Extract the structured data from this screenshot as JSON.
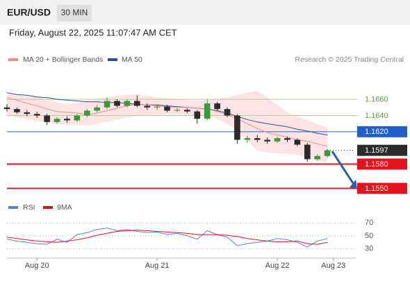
{
  "header": {
    "symbol": "EUR/USD",
    "interval": "30 MIN",
    "datetime": "Friday, August 22, 2025 11:07:47 AM CET"
  },
  "chart_data": [
    {
      "type": "candlestick",
      "source": "Research © 2025 Trading Central",
      "up_color": "#3a9a3a",
      "down_color": "#2b2b2b",
      "xlim": [
        0,
        34.7
      ],
      "ylim": [
        1.1541,
        1.1697
      ],
      "open": [
        1.165,
        1.1648,
        1.1644,
        1.1642,
        1.164,
        1.1632,
        1.1636,
        1.1634,
        1.164,
        1.1646,
        1.165,
        1.1658,
        1.1652,
        1.1658,
        1.1652,
        1.165,
        1.1651,
        1.1646,
        1.1647,
        1.1645,
        1.1636,
        1.1655,
        1.1648,
        1.164,
        1.161,
        1.1612,
        1.161,
        1.1608,
        1.1612,
        1.161,
        1.1604,
        1.1586,
        1.159
      ],
      "high": [
        1.1654,
        1.165,
        1.1647,
        1.1645,
        1.1642,
        1.1638,
        1.1639,
        1.1642,
        1.1648,
        1.1653,
        1.1662,
        1.166,
        1.166,
        1.1665,
        1.1655,
        1.1654,
        1.1653,
        1.1649,
        1.1649,
        1.1647,
        1.166,
        1.1657,
        1.165,
        1.1642,
        1.1615,
        1.1616,
        1.1613,
        1.1614,
        1.1614,
        1.1612,
        1.1606,
        1.1592,
        1.1599
      ],
      "low": [
        1.1645,
        1.1642,
        1.1639,
        1.1637,
        1.1628,
        1.163,
        1.1631,
        1.1632,
        1.1638,
        1.1644,
        1.1648,
        1.165,
        1.165,
        1.165,
        1.1647,
        1.1647,
        1.1644,
        1.1644,
        1.1643,
        1.163,
        1.1634,
        1.1646,
        1.1638,
        1.1605,
        1.1606,
        1.1607,
        1.1605,
        1.1606,
        1.1607,
        1.1602,
        1.1583,
        1.1584,
        1.1588
      ],
      "close": [
        1.1648,
        1.1644,
        1.1642,
        1.164,
        1.1632,
        1.1636,
        1.1634,
        1.164,
        1.1646,
        1.165,
        1.1658,
        1.1652,
        1.1658,
        1.1652,
        1.165,
        1.1651,
        1.1646,
        1.1647,
        1.1645,
        1.1636,
        1.1655,
        1.1648,
        1.164,
        1.161,
        1.1612,
        1.161,
        1.1608,
        1.1612,
        1.161,
        1.1604,
        1.1586,
        1.159,
        1.1597
      ],
      "series": [
        {
          "name": "MA 20 + Bollinger Bands",
          "color": "#f08a8a",
          "band_color": "#fde3e3",
          "values": [
            1.1662,
            1.1659,
            1.1655,
            1.1652,
            1.1648,
            1.1645,
            1.1644,
            1.1643,
            1.1641,
            1.1643,
            1.1646,
            1.1649,
            1.1652,
            1.1654,
            1.1653,
            1.1652,
            1.1651,
            1.165,
            1.165,
            1.1649,
            1.1648,
            1.1645,
            1.1641,
            1.1636,
            1.163,
            1.1624,
            1.1619,
            1.1616,
            1.1613,
            1.161,
            1.1608,
            1.1605,
            1.1602
          ],
          "upper": [
            1.1666,
            1.1665,
            1.1664,
            1.1663,
            1.166,
            1.1656,
            1.1653,
            1.1655,
            1.1658,
            1.166,
            1.1662,
            1.1664,
            1.1665,
            1.1666,
            1.1664,
            1.1662,
            1.1661,
            1.166,
            1.1659,
            1.1658,
            1.1658,
            1.166,
            1.1662,
            1.1665,
            1.1668,
            1.167,
            1.1662,
            1.1652,
            1.1644,
            1.1638,
            1.1634,
            1.1629,
            1.1625
          ],
          "lower": [
            1.164,
            1.1638,
            1.1636,
            1.1634,
            1.1632,
            1.163,
            1.1629,
            1.1629,
            1.1628,
            1.163,
            1.1633,
            1.1635,
            1.1638,
            1.164,
            1.1641,
            1.1641,
            1.1642,
            1.1642,
            1.1641,
            1.164,
            1.164,
            1.1636,
            1.163,
            1.1622,
            1.161,
            1.1597,
            1.1595,
            1.1594,
            1.1593,
            1.1592,
            1.1588,
            1.1585,
            1.1582
          ]
        },
        {
          "name": "MA 50",
          "color": "#2a4d9c",
          "values": [
            1.1668,
            1.1666,
            1.1665,
            1.1663,
            1.1662,
            1.166,
            1.1659,
            1.1658,
            1.1657,
            1.1657,
            1.1656,
            1.1656,
            1.1655,
            1.1654,
            1.1653,
            1.1653,
            1.1652,
            1.1651,
            1.165,
            1.1649,
            1.1648,
            1.1646,
            1.1643,
            1.1639,
            1.1635,
            1.1632,
            1.163,
            1.1628,
            1.1626,
            1.1623,
            1.1621,
            1.1618,
            1.1616
          ]
        }
      ],
      "levels": [
        {
          "value": {
            "value": 1.166,
            "label": "1.1660"
          },
          "color": "#a9d48c",
          "text_color": "#5a9e2a",
          "box": false,
          "dotted": false
        },
        {
          "value": {
            "value": 1.164,
            "label": "1.1640"
          },
          "color": "#a9d48c",
          "text_color": "#5a9e2a",
          "box": false,
          "dotted": false
        },
        {
          "value": {
            "value": 1.162,
            "label": "1.1620"
          },
          "color": "#1f5fc8",
          "text_color": "#ffffff",
          "box": true,
          "dotted": false
        },
        {
          "value": 1.1597,
          "color": "#2b2b2b",
          "text_color": "#ffffff",
          "box": true,
          "dotted": true
        },
        {
          "value": {
            "value": 1.158,
            "label": "1.1580"
          },
          "color": "#e0141e",
          "text_color": "#ffffff",
          "box": true,
          "dotted": false
        },
        {
          "value": {
            "value": 1.155,
            "label": "1.1550"
          },
          "color": "#e0141e",
          "text_color": "#ffffff",
          "box": true,
          "dotted": false
        }
      ]
    },
    {
      "type": "line",
      "xlim": [
        0,
        34.7
      ],
      "ylim": [
        20,
        80
      ],
      "yticks": [
        70,
        50,
        30
      ],
      "xticks": [
        {
          "value": 3,
          "label": "Aug 20"
        },
        {
          "value": 15,
          "label": "Aug 21"
        },
        {
          "value": 27,
          "label": "Aug 22"
        },
        {
          "value": 32.6,
          "label": "Aug 23"
        }
      ],
      "series": [
        {
          "name": "RSI",
          "color": "#5b7fd6",
          "values": [
            45,
            42,
            40,
            38,
            37,
            45,
            40,
            52,
            55,
            60,
            62,
            58,
            60,
            57,
            55,
            56,
            52,
            54,
            50,
            45,
            58,
            52,
            48,
            35,
            38,
            40,
            42,
            46,
            44,
            40,
            33,
            42,
            46
          ]
        },
        {
          "name": "9MA",
          "color": "#e0141e",
          "values": [
            48,
            46,
            44,
            42,
            41,
            40,
            42,
            44,
            47,
            51,
            54,
            57,
            58,
            59,
            58,
            57,
            56,
            55,
            54,
            52,
            52,
            52,
            51,
            49,
            46,
            44,
            42,
            41,
            41,
            42,
            38,
            37,
            40
          ]
        }
      ]
    }
  ]
}
